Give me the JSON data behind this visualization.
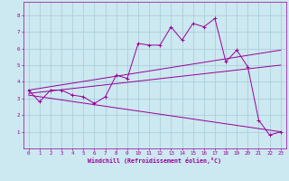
{
  "title": "",
  "xlabel": "Windchill (Refroidissement éolien,°C)",
  "ylabel": "",
  "background_color": "#cce8f0",
  "grid_color": "#aacfdb",
  "line_color": "#990099",
  "xlim": [
    -0.5,
    23.5
  ],
  "ylim": [
    0,
    8.8
  ],
  "xticks": [
    0,
    1,
    2,
    3,
    4,
    5,
    6,
    7,
    8,
    9,
    10,
    11,
    12,
    13,
    14,
    15,
    16,
    17,
    18,
    19,
    20,
    21,
    22,
    23
  ],
  "yticks": [
    1,
    2,
    3,
    4,
    5,
    6,
    7,
    8
  ],
  "lines": [
    {
      "x": [
        0,
        1,
        2,
        3,
        4,
        5,
        6,
        7,
        8,
        9,
        10,
        11,
        12,
        13,
        14,
        15,
        16,
        17,
        18,
        19,
        20,
        21,
        22,
        23
      ],
      "y": [
        3.5,
        2.8,
        3.5,
        3.5,
        3.2,
        3.1,
        2.7,
        3.1,
        4.4,
        4.2,
        6.3,
        6.2,
        6.2,
        7.3,
        6.5,
        7.5,
        7.3,
        7.8,
        5.2,
        5.9,
        4.9,
        1.7,
        0.8,
        1.0
      ],
      "marker": "+"
    },
    {
      "x": [
        0,
        23
      ],
      "y": [
        3.5,
        5.9
      ],
      "marker": null
    },
    {
      "x": [
        0,
        23
      ],
      "y": [
        3.3,
        5.0
      ],
      "marker": null
    },
    {
      "x": [
        0,
        23
      ],
      "y": [
        3.2,
        1.0
      ],
      "marker": null
    }
  ]
}
